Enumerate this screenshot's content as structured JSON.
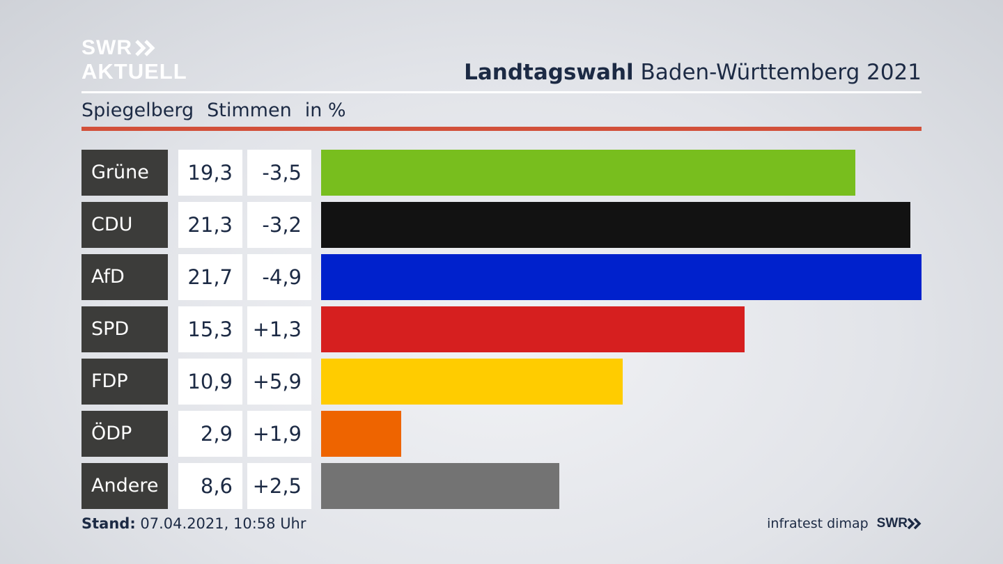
{
  "header": {
    "logo_line1": "SWR",
    "logo_line2": "AKTUELL",
    "title_bold": "Landtagswahl",
    "title_rest": "Baden-Württemberg 2021",
    "subtitle_place": "Spiegelberg",
    "subtitle_measure": "Stimmen",
    "subtitle_unit": "in %"
  },
  "chart_data": {
    "type": "bar",
    "orientation": "horizontal",
    "categories": [
      "Grüne",
      "CDU",
      "AfD",
      "SPD",
      "FDP",
      "ÖDP",
      "Andere"
    ],
    "values": [
      19.3,
      21.3,
      21.7,
      15.3,
      10.9,
      2.9,
      8.6
    ],
    "value_labels": [
      "19,3",
      "21,3",
      "21,7",
      "15,3",
      "10,9",
      "2,9",
      "8,6"
    ],
    "diffs": [
      -3.5,
      -3.2,
      -4.9,
      1.3,
      5.9,
      1.9,
      2.5
    ],
    "diff_labels": [
      "-3,5",
      "-3,2",
      "-4,9",
      "+1,3",
      "+5,9",
      "+1,9",
      "+2,5"
    ],
    "colors": [
      "#78be1e",
      "#121212",
      "#0021cc",
      "#d61f1f",
      "#ffcc00",
      "#ee6400",
      "#737373"
    ],
    "title": "Landtagswahl Baden-Württemberg 2021",
    "xlim": [
      0,
      21.7
    ]
  },
  "footer": {
    "stand_label": "Stand:",
    "stand_value": "07.04.2021, 10:58 Uhr",
    "source": "infratest dimap",
    "brand": "SWR"
  }
}
